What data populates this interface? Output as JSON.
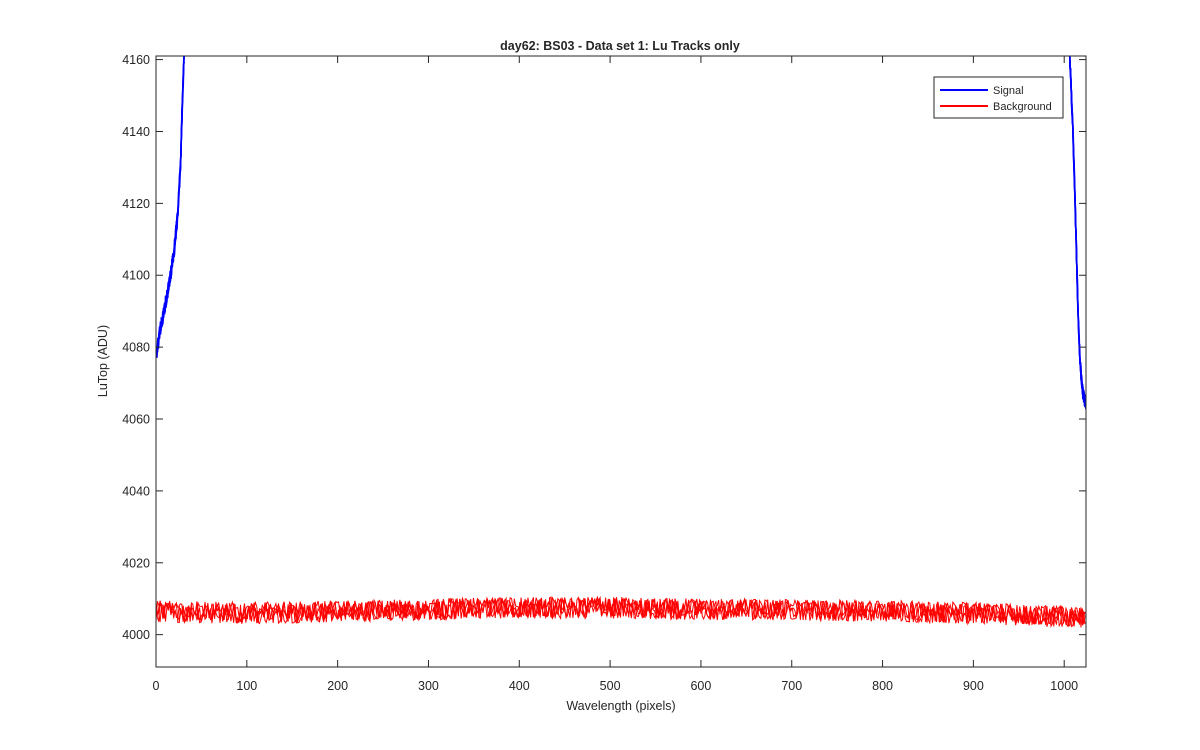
{
  "chart_data": {
    "type": "line",
    "title": "day62: BS03 - Data set 1: Lu Tracks only",
    "xlabel": "Wavelength (pixels)",
    "ylabel": "LuTop (ADU)",
    "xlim": [
      0,
      1024
    ],
    "ylim": [
      3991,
      4161
    ],
    "x_ticks": [
      0,
      100,
      200,
      300,
      400,
      500,
      600,
      700,
      800,
      900,
      1000
    ],
    "y_ticks": [
      4000,
      4020,
      4040,
      4060,
      4080,
      4100,
      4120,
      4140,
      4160
    ],
    "grid": false,
    "box": true,
    "legend_position": "top-right",
    "series": [
      {
        "name": "Signal",
        "color": "#0000ff",
        "segments": [
          {
            "x": [
              1,
              4,
              8,
              12,
              16,
              20,
              24,
              27,
              29,
              31
            ],
            "y": [
              4079,
              4084,
              4089,
              4094,
              4100,
              4107,
              4117,
              4131,
              4148,
              4161
            ]
          },
          {
            "x": [
              1006,
              1008,
              1010,
              1012,
              1014,
              1016,
              1018,
              1020,
              1022,
              1024
            ],
            "y": [
              4161,
              4150,
              4137,
              4120,
              4101,
              4085,
              4074,
              4068,
              4066,
              4064
            ]
          }
        ]
      },
      {
        "name": "Background",
        "color": "#ff0000",
        "x": [
          0,
          100,
          200,
          300,
          400,
          500,
          600,
          700,
          800,
          900,
          1000,
          1024
        ],
        "y": [
          4006.5,
          4006.0,
          4006.5,
          4007.0,
          4007.5,
          4007.5,
          4007.0,
          4007.0,
          4006.5,
          4006.0,
          4005.0,
          4004.5
        ],
        "noise_amplitude": 3
      }
    ]
  }
}
